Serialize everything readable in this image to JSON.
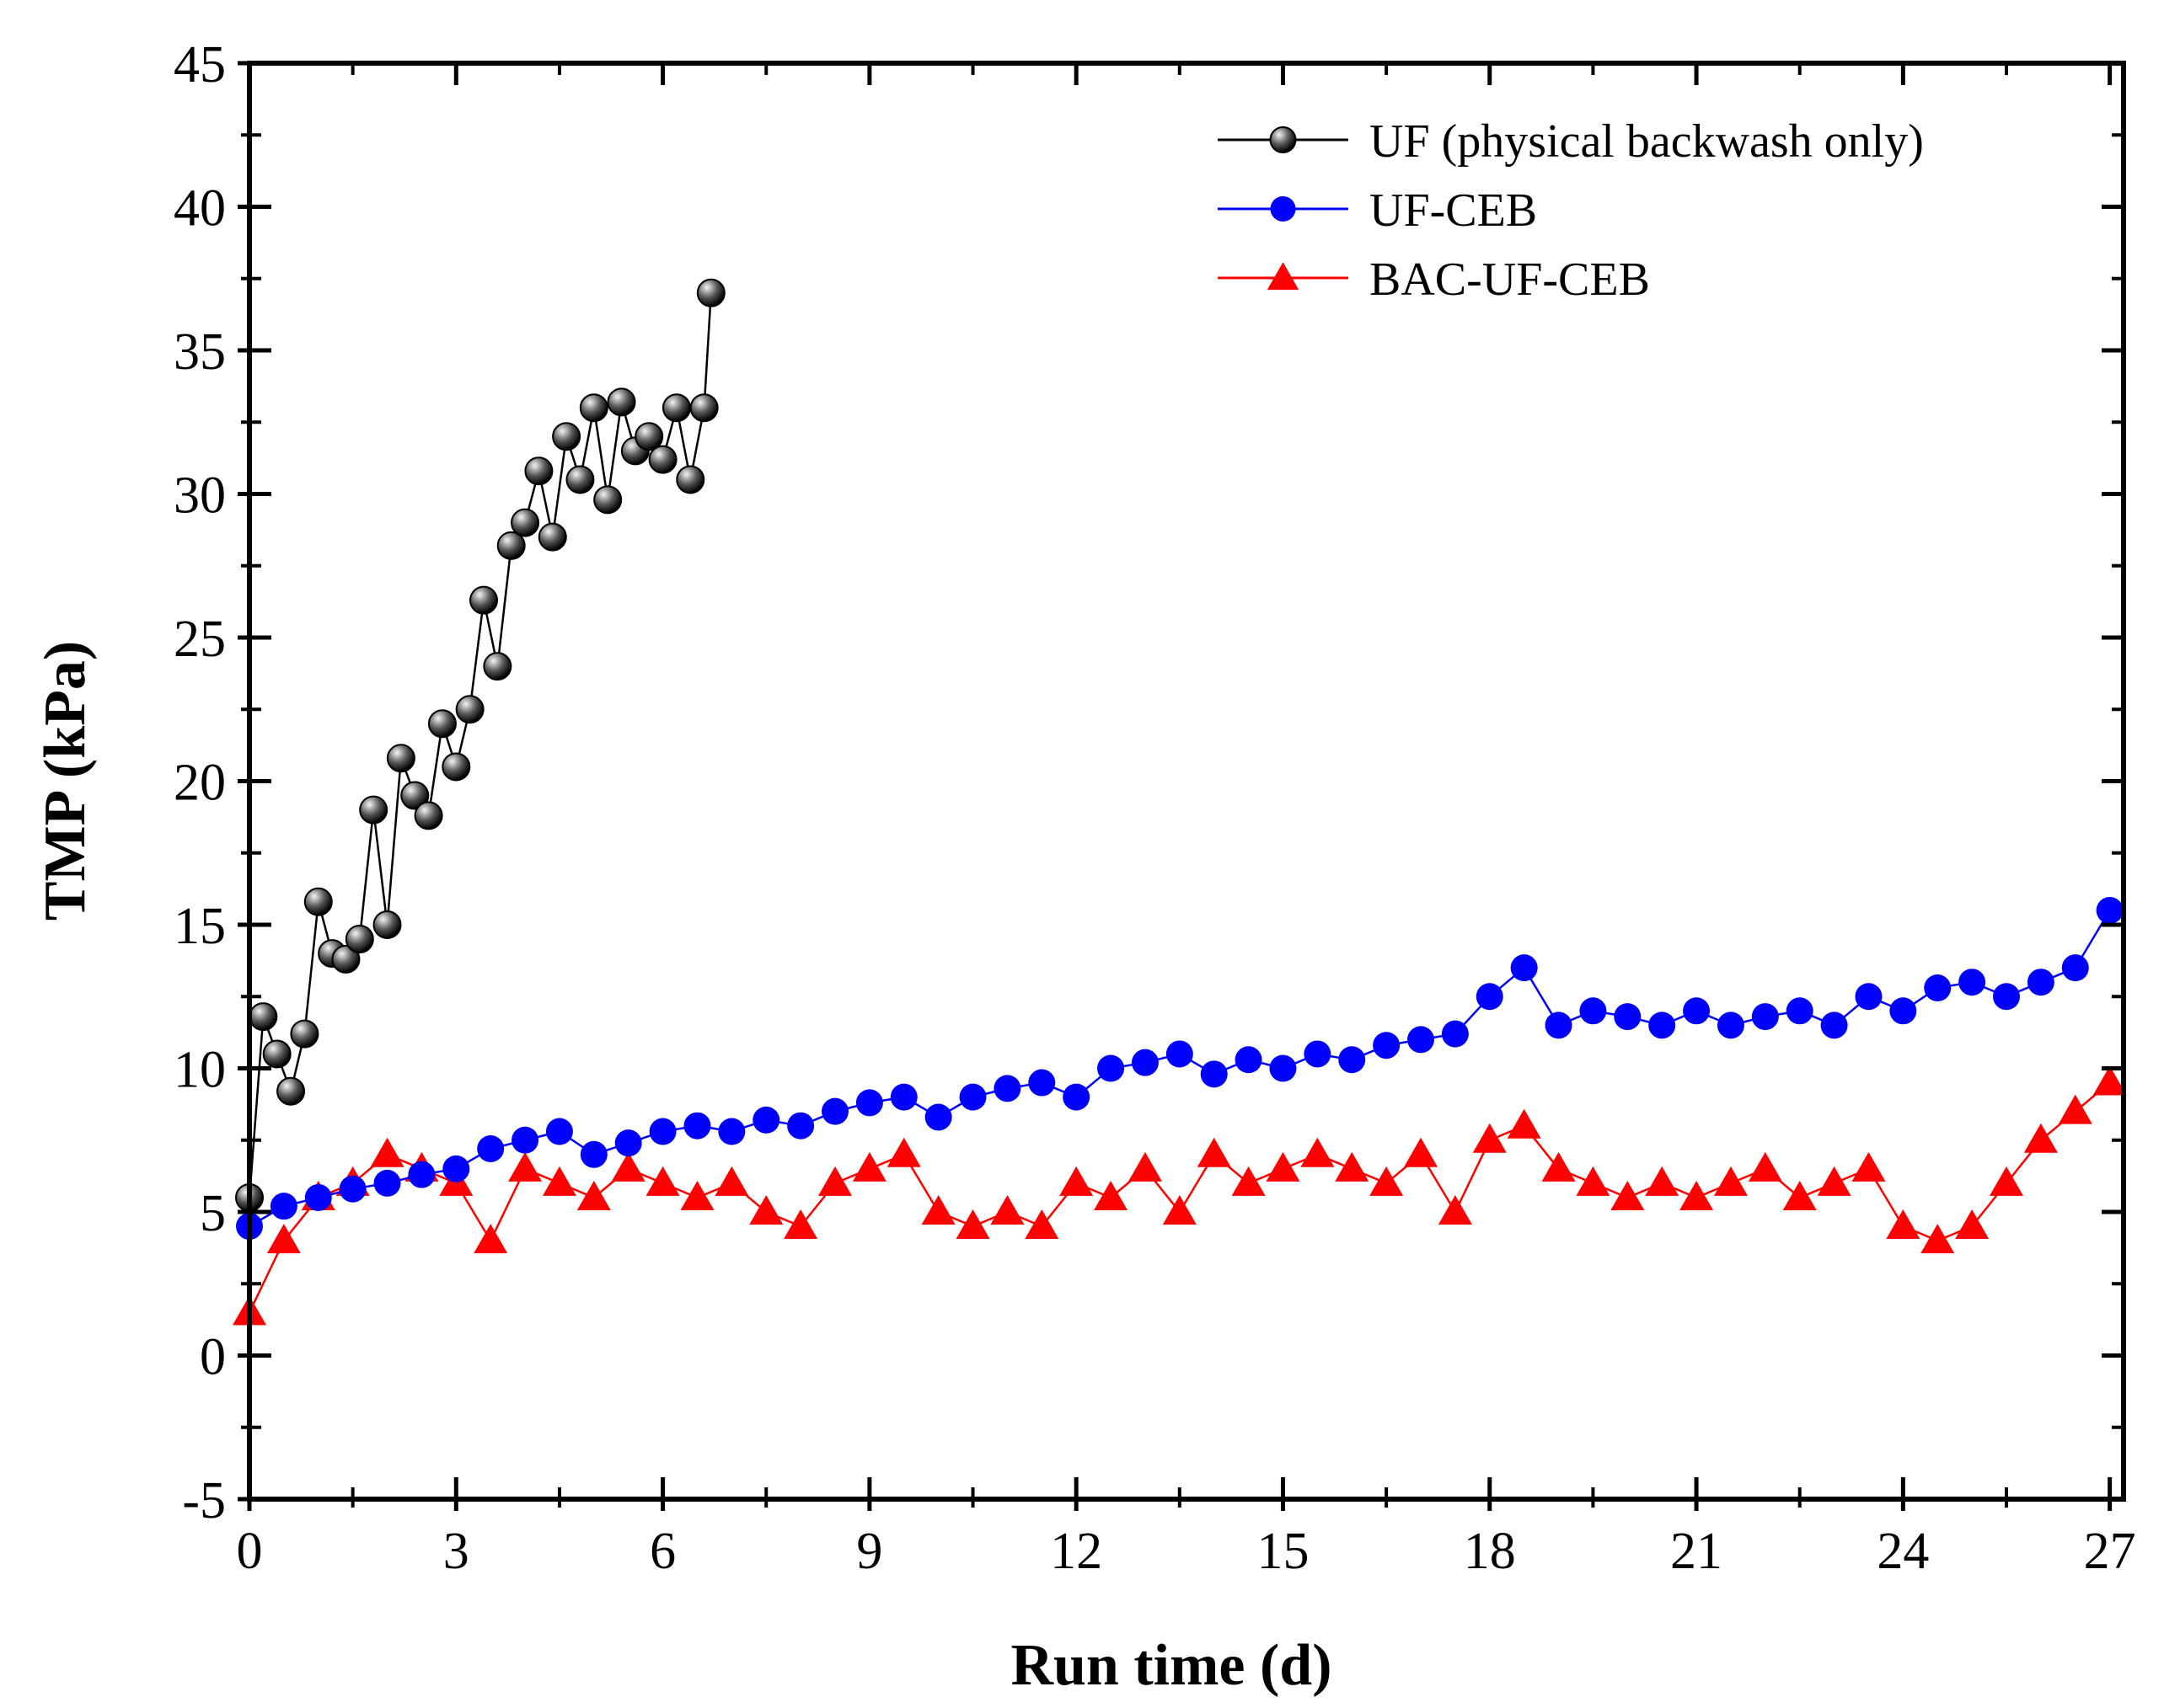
{
  "chart_data": {
    "type": "scatter",
    "title": "",
    "xlabel": "Run time (d)",
    "ylabel": "TMP (kPa)",
    "xlim": [
      0,
      27.2
    ],
    "ylim": [
      -5,
      45
    ],
    "xticks": [
      0,
      3,
      6,
      9,
      12,
      15,
      18,
      21,
      24,
      27
    ],
    "yticks": [
      -5,
      0,
      5,
      10,
      15,
      20,
      25,
      30,
      35,
      40,
      45
    ],
    "xtick_labels": [
      "0",
      "3",
      "6",
      "9",
      "12",
      "15",
      "18",
      "21",
      "24",
      "27"
    ],
    "ytick_labels": [
      "-5",
      "0",
      "5",
      "10",
      "15",
      "20",
      "25",
      "30",
      "35",
      "40",
      "45"
    ],
    "grid": false,
    "legend_position": "top-right",
    "series": [
      {
        "name": "UF (physical backwash only)",
        "color": "#000000",
        "marker": "sphere",
        "x": [
          0.0,
          0.2,
          0.4,
          0.6,
          0.8,
          1.0,
          1.2,
          1.4,
          1.6,
          1.8,
          2.0,
          2.2,
          2.4,
          2.6,
          2.8,
          3.0,
          3.2,
          3.4,
          3.6,
          3.8,
          4.0,
          4.2,
          4.4,
          4.6,
          4.8,
          5.0,
          5.2,
          5.4,
          5.6,
          5.8,
          6.0,
          6.2,
          6.4,
          6.6,
          6.7
        ],
        "values": [
          5.5,
          11.8,
          10.5,
          9.2,
          11.2,
          15.8,
          14.0,
          13.8,
          14.5,
          19.0,
          15.0,
          20.8,
          19.5,
          18.8,
          22.0,
          20.5,
          22.5,
          26.3,
          24.0,
          28.2,
          29.0,
          30.8,
          28.5,
          32.0,
          30.5,
          33.0,
          29.8,
          33.2,
          31.5,
          32.0,
          31.2,
          33.0,
          30.5,
          33.0,
          37.0
        ]
      },
      {
        "name": "UF-CEB",
        "color": "#0000ff",
        "marker": "circle",
        "x": [
          0.0,
          0.5,
          1.0,
          1.5,
          2.0,
          2.5,
          3.0,
          3.5,
          4.0,
          4.5,
          5.0,
          5.5,
          6.0,
          6.5,
          7.0,
          7.5,
          8.0,
          8.5,
          9.0,
          9.5,
          10.0,
          10.5,
          11.0,
          11.5,
          12.0,
          12.5,
          13.0,
          13.5,
          14.0,
          14.5,
          15.0,
          15.5,
          16.0,
          16.5,
          17.0,
          17.5,
          18.0,
          18.5,
          19.0,
          19.5,
          20.0,
          20.5,
          21.0,
          21.5,
          22.0,
          22.5,
          23.0,
          23.5,
          24.0,
          24.5,
          25.0,
          25.5,
          26.0,
          26.5,
          27.0
        ],
        "values": [
          4.5,
          5.2,
          5.5,
          5.8,
          6.0,
          6.3,
          6.5,
          7.2,
          7.5,
          7.8,
          7.0,
          7.4,
          7.8,
          8.0,
          7.8,
          8.2,
          8.0,
          8.5,
          8.8,
          9.0,
          8.3,
          9.0,
          9.3,
          9.5,
          9.0,
          10.0,
          10.2,
          10.5,
          9.8,
          10.3,
          10.0,
          10.5,
          10.3,
          10.8,
          11.0,
          11.2,
          12.5,
          13.5,
          11.5,
          12.0,
          11.8,
          11.5,
          12.0,
          11.5,
          11.8,
          12.0,
          11.5,
          12.5,
          12.0,
          12.8,
          13.0,
          12.5,
          13.0,
          13.5,
          15.5
        ]
      },
      {
        "name": "BAC-UF-CEB",
        "color": "#ff0000",
        "marker": "triangle",
        "x": [
          0.0,
          0.5,
          1.0,
          1.5,
          2.0,
          2.5,
          3.0,
          3.5,
          4.0,
          4.5,
          5.0,
          5.5,
          6.0,
          6.5,
          7.0,
          7.5,
          8.0,
          8.5,
          9.0,
          9.5,
          10.0,
          10.5,
          11.0,
          11.5,
          12.0,
          12.5,
          13.0,
          13.5,
          14.0,
          14.5,
          15.0,
          15.5,
          16.0,
          16.5,
          17.0,
          17.5,
          18.0,
          18.5,
          19.0,
          19.5,
          20.0,
          20.5,
          21.0,
          21.5,
          22.0,
          22.5,
          23.0,
          23.5,
          24.0,
          24.5,
          25.0,
          25.5,
          26.0,
          26.5,
          27.0
        ],
        "values": [
          1.5,
          4.0,
          5.5,
          6.0,
          7.0,
          6.5,
          6.0,
          4.0,
          6.5,
          6.0,
          5.5,
          6.5,
          6.0,
          5.5,
          6.0,
          5.0,
          4.5,
          6.0,
          6.5,
          7.0,
          5.0,
          4.5,
          5.0,
          4.5,
          6.0,
          5.5,
          6.5,
          5.0,
          7.0,
          6.0,
          6.5,
          7.0,
          6.5,
          6.0,
          7.0,
          5.0,
          7.5,
          8.0,
          6.5,
          6.0,
          5.5,
          6.0,
          5.5,
          6.0,
          6.5,
          5.5,
          6.0,
          6.5,
          4.5,
          4.0,
          4.5,
          6.0,
          7.5,
          8.5,
          9.5
        ]
      }
    ]
  }
}
